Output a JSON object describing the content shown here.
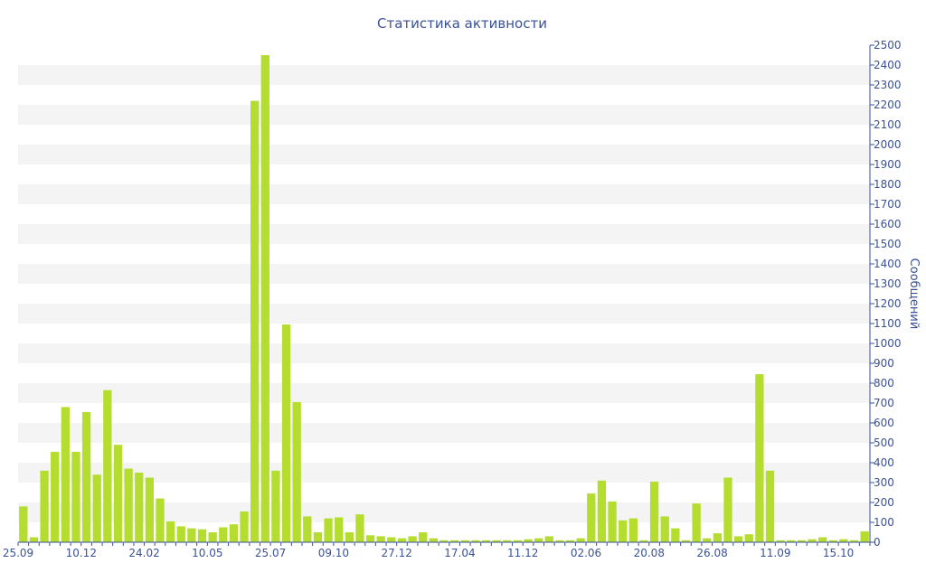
{
  "colors": {
    "bar": "#b5dd2f",
    "text": "#3a5296",
    "axis": "#3a5296",
    "band": "#f4f4f4",
    "background": "#ffffff"
  },
  "chart_data": {
    "type": "bar",
    "title": "Статистика активности",
    "xlabel": "",
    "ylabel": "Сообщений",
    "ylim": [
      0,
      2500
    ],
    "y_ticks": [
      0,
      100,
      200,
      300,
      400,
      500,
      600,
      700,
      800,
      900,
      1000,
      1100,
      1200,
      1300,
      1400,
      1500,
      1600,
      1700,
      1800,
      1900,
      2000,
      2100,
      2200,
      2300,
      2400,
      2500
    ],
    "y_axis_side": "right",
    "grid": "alternating horizontal bands",
    "legend": "none",
    "x_tick_labels": [
      {
        "label": "25.09",
        "index": 0
      },
      {
        "label": "10.12",
        "index": 6
      },
      {
        "label": "24.02",
        "index": 12
      },
      {
        "label": "10.05",
        "index": 18
      },
      {
        "label": "25.07",
        "index": 24
      },
      {
        "label": "09.10",
        "index": 30
      },
      {
        "label": "27.12",
        "index": 36
      },
      {
        "label": "17.04",
        "index": 42
      },
      {
        "label": "11.12",
        "index": 48
      },
      {
        "label": "02.06",
        "index": 54
      },
      {
        "label": "20.08",
        "index": 60
      },
      {
        "label": "26.08",
        "index": 66
      },
      {
        "label": "11.09",
        "index": 72
      },
      {
        "label": "15.10",
        "index": 78
      }
    ],
    "values": [
      180,
      25,
      360,
      455,
      680,
      455,
      655,
      340,
      765,
      490,
      370,
      350,
      325,
      220,
      105,
      80,
      70,
      65,
      50,
      75,
      90,
      155,
      2220,
      2450,
      360,
      1095,
      705,
      130,
      50,
      120,
      125,
      50,
      140,
      35,
      30,
      25,
      20,
      30,
      50,
      20,
      10,
      10,
      10,
      10,
      10,
      10,
      10,
      10,
      15,
      20,
      30,
      10,
      10,
      20,
      245,
      310,
      205,
      110,
      120,
      10,
      305,
      130,
      70,
      10,
      195,
      20,
      45,
      325,
      30,
      40,
      845,
      360,
      10,
      10,
      10,
      15,
      25,
      10,
      15,
      10,
      55
    ]
  }
}
